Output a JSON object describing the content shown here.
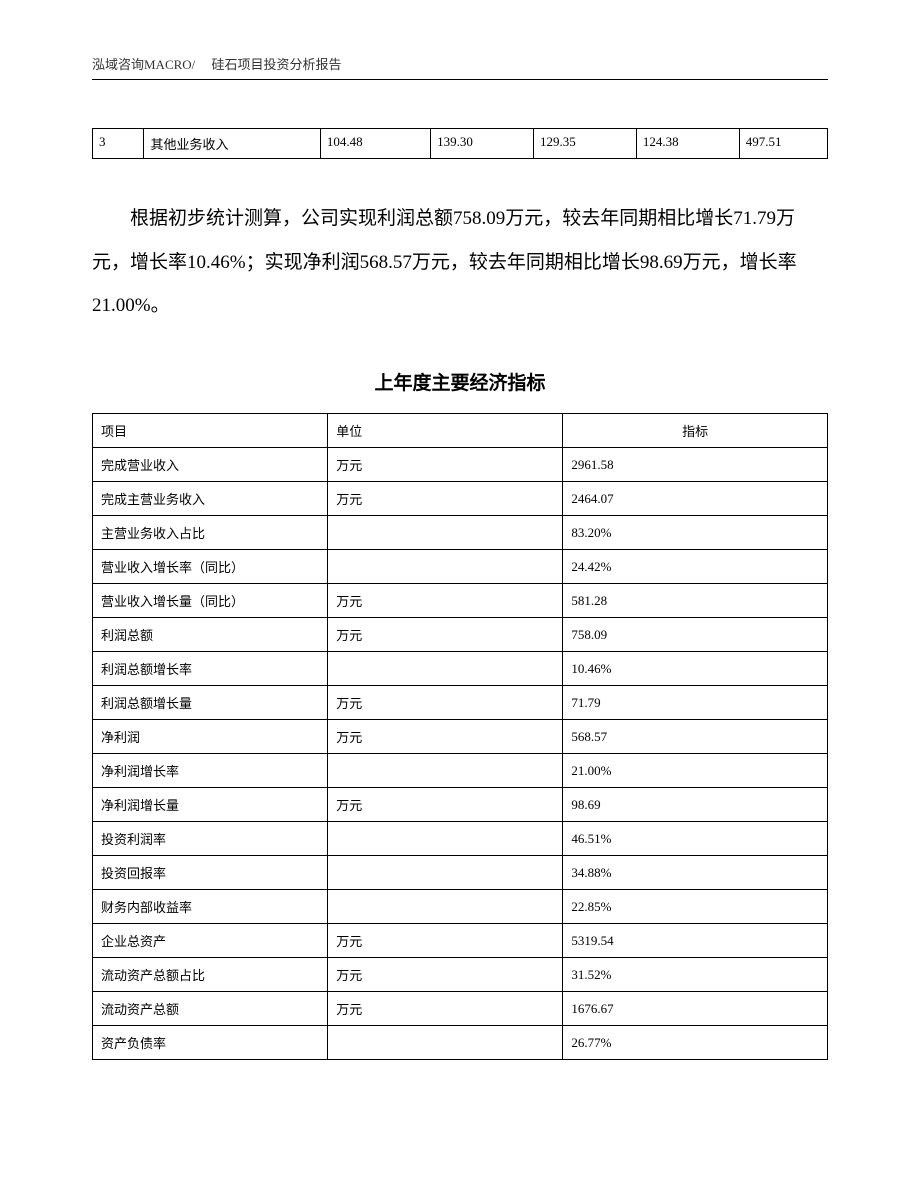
{
  "header": {
    "text": "泓域咨询MACRO/　 硅石项目投资分析报告"
  },
  "small_table": {
    "columns": [
      "st-col1",
      "st-col2",
      "st-col3",
      "st-col4",
      "st-col5",
      "st-col6",
      "st-col7"
    ],
    "rows": [
      [
        "3",
        "其他业务收入",
        "104.48",
        "139.30",
        "129.35",
        "124.38",
        "497.51"
      ]
    ]
  },
  "paragraph_text": "根据初步统计测算，公司实现利润总额758.09万元，较去年同期相比增长71.79万元，增长率10.46%；实现净利润568.57万元，较去年同期相比增长98.69万元，增长率21.00%。",
  "section_title": "上年度主要经济指标",
  "main_table": {
    "headers": [
      "项目",
      "单位",
      "指标"
    ],
    "rows": [
      {
        "item": "完成营业收入",
        "unit": "万元",
        "value": "2961.58"
      },
      {
        "item": "完成主营业务收入",
        "unit": "万元",
        "value": "2464.07"
      },
      {
        "item": "主营业务收入占比",
        "unit": "",
        "value": "83.20%"
      },
      {
        "item": "营业收入增长率（同比）",
        "unit": "",
        "value": "24.42%"
      },
      {
        "item": "营业收入增长量（同比）",
        "unit": "万元",
        "value": "581.28"
      },
      {
        "item": "利润总额",
        "unit": "万元",
        "value": "758.09"
      },
      {
        "item": "利润总额增长率",
        "unit": "",
        "value": "10.46%"
      },
      {
        "item": "利润总额增长量",
        "unit": "万元",
        "value": "71.79"
      },
      {
        "item": "净利润",
        "unit": "万元",
        "value": "568.57"
      },
      {
        "item": "净利润增长率",
        "unit": "",
        "value": "21.00%"
      },
      {
        "item": "净利润增长量",
        "unit": "万元",
        "value": "98.69"
      },
      {
        "item": "投资利润率",
        "unit": "",
        "value": "46.51%"
      },
      {
        "item": "投资回报率",
        "unit": "",
        "value": "34.88%"
      },
      {
        "item": "财务内部收益率",
        "unit": "",
        "value": "22.85%"
      },
      {
        "item": "企业总资产",
        "unit": "万元",
        "value": "5319.54"
      },
      {
        "item": "流动资产总额占比",
        "unit": "万元",
        "value": "31.52%"
      },
      {
        "item": "流动资产总额",
        "unit": "万元",
        "value": "1676.67"
      },
      {
        "item": "资产负债率",
        "unit": "",
        "value": "26.77%"
      }
    ]
  },
  "styling": {
    "page_bg": "#ffffff",
    "text_color": "#000000",
    "border_color": "#000000",
    "body_font_size": 19,
    "table_font_size": 13,
    "line_height": 2.3,
    "font_family": "SimSun"
  }
}
